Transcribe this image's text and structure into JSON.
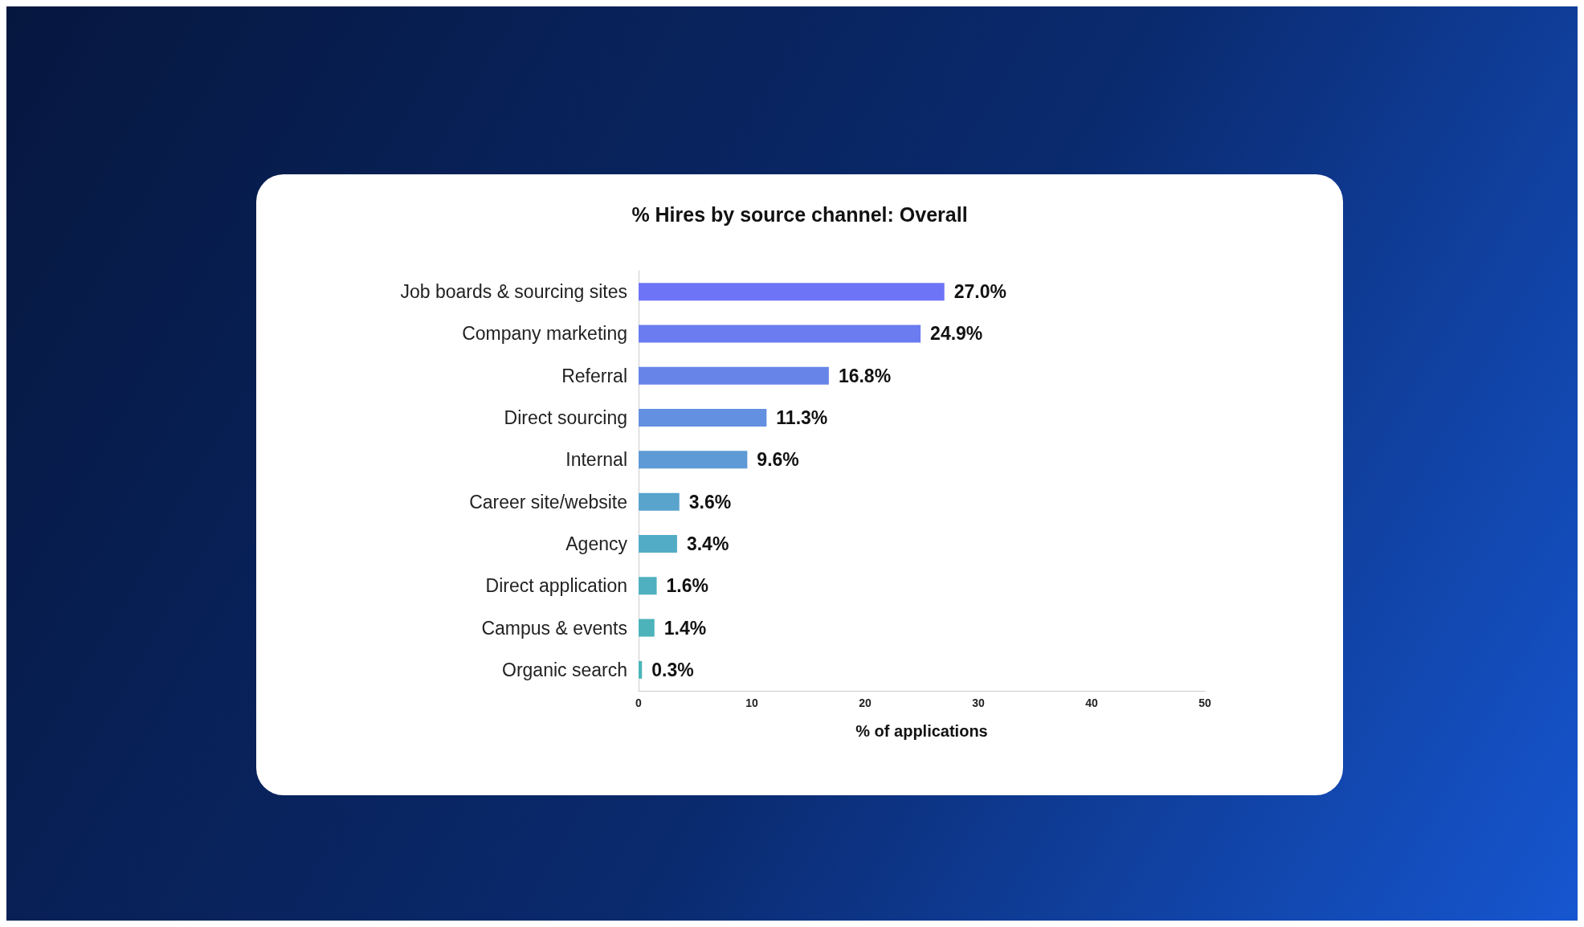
{
  "chart_data": {
    "type": "bar",
    "orientation": "horizontal",
    "title": "% Hires by source channel: Overall",
    "xlabel": "% of applications",
    "categories": [
      "Job boards & sourcing sites",
      "Company marketing",
      "Referral",
      "Direct sourcing",
      "Internal",
      "Career site/website",
      "Agency",
      "Direct application",
      "Campus & events",
      "Organic search"
    ],
    "values": [
      27.0,
      24.9,
      16.8,
      11.3,
      9.6,
      3.6,
      3.4,
      1.6,
      1.4,
      0.3
    ],
    "value_labels": [
      "27.0%",
      "24.9%",
      "16.8%",
      "11.3%",
      "9.6%",
      "3.6%",
      "3.4%",
      "1.6%",
      "1.4%",
      "0.3%"
    ],
    "colors": [
      "#6e74f6",
      "#6a7cf0",
      "#6785e8",
      "#6390e0",
      "#5e9ad6",
      "#58a4cd",
      "#53acc6",
      "#4fb1c0",
      "#4cb3bb",
      "#4ab5b8"
    ],
    "xlim": [
      0,
      50
    ],
    "xticks": [
      0,
      10,
      20,
      30,
      40,
      50
    ],
    "grid": false
  }
}
